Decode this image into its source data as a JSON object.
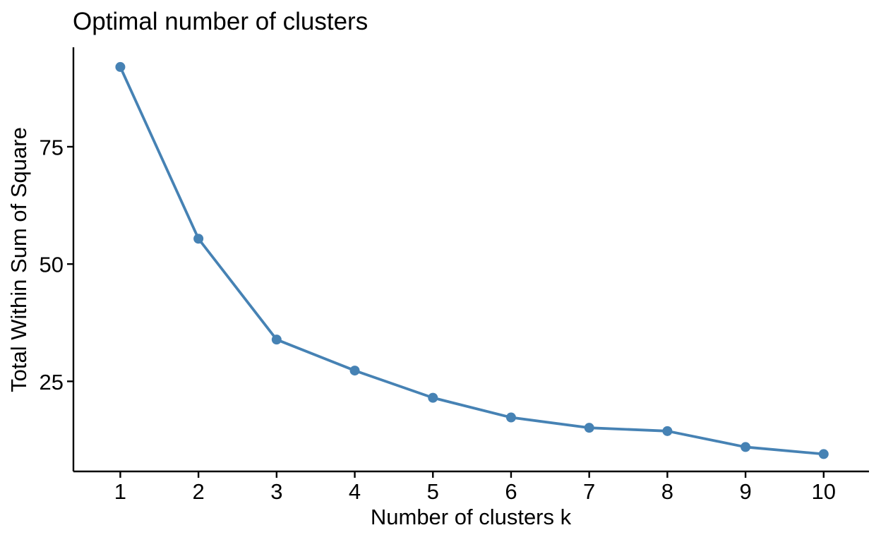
{
  "chart_data": {
    "type": "line",
    "title": "Optimal number of clusters",
    "xlabel": "Number of clusters k",
    "ylabel": "Total Within Sum of Square",
    "x": [
      1,
      2,
      3,
      4,
      5,
      6,
      7,
      8,
      9,
      10
    ],
    "values": [
      92.0,
      55.4,
      33.9,
      27.3,
      21.5,
      17.3,
      15.1,
      14.4,
      11.0,
      9.5
    ],
    "x_ticks": [
      1,
      2,
      3,
      4,
      5,
      6,
      7,
      8,
      9,
      10
    ],
    "y_ticks": [
      25,
      50,
      75
    ],
    "xlim": [
      0.4,
      10.58
    ],
    "ylim": [
      5.8,
      96.2
    ],
    "grid": false,
    "legend": "none",
    "line_color": "#4682B4",
    "point_color": "#4682B4",
    "axis_color": "#000000",
    "text_color": "#000000",
    "background": "#FFFFFF"
  }
}
